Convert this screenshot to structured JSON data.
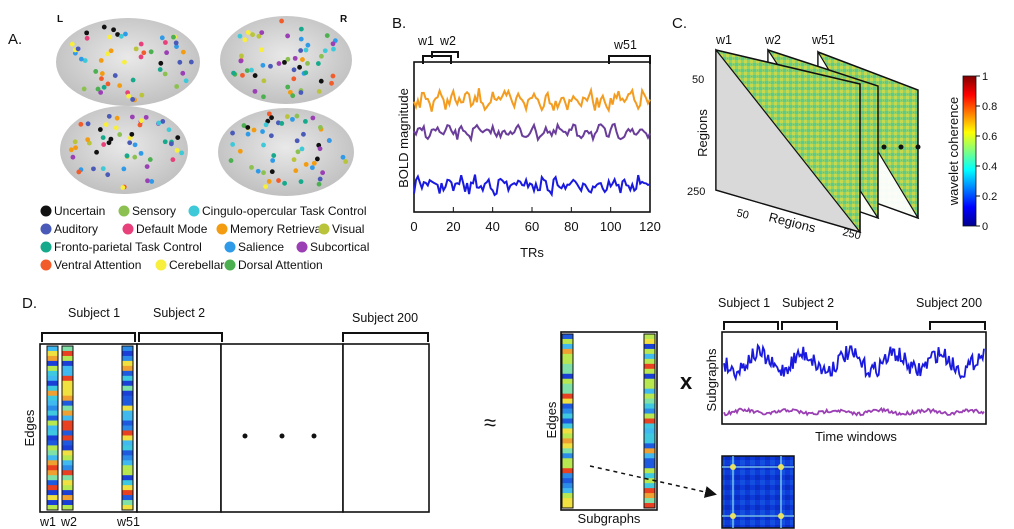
{
  "panelA": {
    "label": "A.",
    "hemi_left": "L",
    "hemi_right": "R",
    "legend": [
      {
        "name": "Uncertain",
        "color": "#111111"
      },
      {
        "name": "Sensory",
        "color": "#8cc152"
      },
      {
        "name": "Cingulo-opercular Task Control",
        "color": "#3ec9d9"
      },
      {
        "name": "Auditory",
        "color": "#4a5ab8"
      },
      {
        "name": "Default Mode",
        "color": "#e8407a"
      },
      {
        "name": "Memory Retrieval",
        "color": "#f39c12"
      },
      {
        "name": "Visual",
        "color": "#b9c43a"
      },
      {
        "name": "Fronto-parietal Task Control",
        "color": "#17a98c"
      },
      {
        "name": "Salience",
        "color": "#2f9be8"
      },
      {
        "name": "Subcortical",
        "color": "#9b3fb5"
      },
      {
        "name": "Ventral Attention",
        "color": "#f25c2a"
      },
      {
        "name": "Cerebellar",
        "color": "#f7ef3c"
      },
      {
        "name": "Dorsal Attention",
        "color": "#4caf50"
      }
    ]
  },
  "panelB": {
    "label": "B.",
    "w1": "w1",
    "w2": "w2",
    "w51": "w51",
    "ylabel": "BOLD magnitude",
    "xlabel": "TRs",
    "xticks": [
      "0",
      "20",
      "40",
      "60",
      "80",
      "100",
      "120"
    ],
    "series_colors": [
      "#f39c20",
      "#6a3d9a",
      "#1a1adf"
    ]
  },
  "panelC": {
    "label": "C.",
    "w1": "w1",
    "w2": "w2",
    "w51": "w51",
    "ylabel": "Regions",
    "xlabel": "Regions",
    "yticks": [
      "50",
      "250"
    ],
    "xticks": [
      "50",
      "250"
    ],
    "colorbar_label": "wavelet coherence",
    "colorbar_ticks": [
      "0",
      "0.2",
      "0.4",
      "0.6",
      "0.8",
      "1"
    ]
  },
  "panelD": {
    "label": "D.",
    "subjects": [
      "Subject 1",
      "Subject 2",
      "Subject 200"
    ],
    "ylabel": "Edges",
    "w1": "w1",
    "w2": "w2",
    "w51": "w51",
    "approx": "≈",
    "edges_label": "Edges",
    "subgraphs_label": "Subgraphs",
    "times": "x",
    "right_subjects": [
      "Subject 1",
      "Subject 2",
      "Subject 200"
    ],
    "right_ylabel": "Subgraphs",
    "right_xlabel": "Time windows",
    "right_series_colors": [
      "#1a1adf",
      "#9b3fb5"
    ]
  }
}
